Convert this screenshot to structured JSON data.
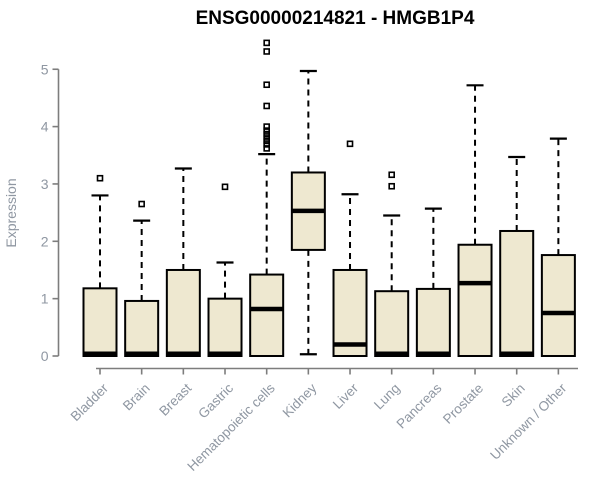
{
  "chart_data": {
    "type": "boxplot",
    "title": "ENSG00000214821 - HMGB1P4",
    "ylabel": "Expression",
    "xlabel": "",
    "ylim": [
      0,
      5
    ],
    "yticks": [
      0,
      1,
      2,
      3,
      4,
      5
    ],
    "grid": false,
    "legend": "none",
    "categories": [
      "Bladder",
      "Brain",
      "Breast",
      "Gastric",
      "Hematopoietic cells",
      "Kidney",
      "Liver",
      "Lung",
      "Pancreas",
      "Prostate",
      "Skin",
      "Unknown / Other"
    ],
    "boxes": [
      {
        "label": "Bladder",
        "q1": 0,
        "median": 0.04,
        "q3": 1.18,
        "whisker_low": 0,
        "whisker_high": 2.8,
        "outliers": [
          3.1
        ]
      },
      {
        "label": "Brain",
        "q1": 0,
        "median": 0.04,
        "q3": 0.96,
        "whisker_low": 0,
        "whisker_high": 2.36,
        "outliers": [
          2.65
        ]
      },
      {
        "label": "Breast",
        "q1": 0,
        "median": 0.04,
        "q3": 1.5,
        "whisker_low": 0,
        "whisker_high": 3.27,
        "outliers": []
      },
      {
        "label": "Gastric",
        "q1": 0,
        "median": 0.04,
        "q3": 1.0,
        "whisker_low": 0,
        "whisker_high": 1.63,
        "outliers": [
          2.95
        ]
      },
      {
        "label": "Hematopoietic cells",
        "q1": 0,
        "median": 0.82,
        "q3": 1.42,
        "whisker_low": 0,
        "whisker_high": 3.52,
        "outliers": [
          5.46,
          5.31,
          4.73,
          4.36,
          4.0,
          3.93,
          3.87,
          3.81,
          3.75,
          3.69,
          3.62
        ]
      },
      {
        "label": "Kidney",
        "q1": 1.85,
        "median": 2.53,
        "q3": 3.2,
        "whisker_low": 0.03,
        "whisker_high": 4.97,
        "outliers": []
      },
      {
        "label": "Liver",
        "q1": 0,
        "median": 0.2,
        "q3": 1.5,
        "whisker_low": 0,
        "whisker_high": 2.82,
        "outliers": [
          3.7
        ]
      },
      {
        "label": "Lung",
        "q1": 0,
        "median": 0.04,
        "q3": 1.13,
        "whisker_low": 0,
        "whisker_high": 2.45,
        "outliers": [
          3.16,
          2.96
        ]
      },
      {
        "label": "Pancreas",
        "q1": 0,
        "median": 0.04,
        "q3": 1.17,
        "whisker_low": 0,
        "whisker_high": 2.57,
        "outliers": []
      },
      {
        "label": "Prostate",
        "q1": 0,
        "median": 1.27,
        "q3": 1.94,
        "whisker_low": 0,
        "whisker_high": 4.72,
        "outliers": []
      },
      {
        "label": "Skin",
        "q1": 0,
        "median": 0.04,
        "q3": 2.18,
        "whisker_low": 0,
        "whisker_high": 3.47,
        "outliers": []
      },
      {
        "label": "Unknown / Other",
        "q1": 0,
        "median": 0.75,
        "q3": 1.76,
        "whisker_low": 0,
        "whisker_high": 3.79,
        "outliers": []
      }
    ],
    "style": {
      "box_fill": "#EEE8D0",
      "box_border": "#000000",
      "median_color": "#000000",
      "whisker_color": "#000000",
      "whisker_style": "dashed",
      "axis_line_color": "#7D7D7D",
      "axis_text_color": "#8F97A2",
      "title_color": "#000000",
      "background": "#FFFFFF"
    }
  }
}
